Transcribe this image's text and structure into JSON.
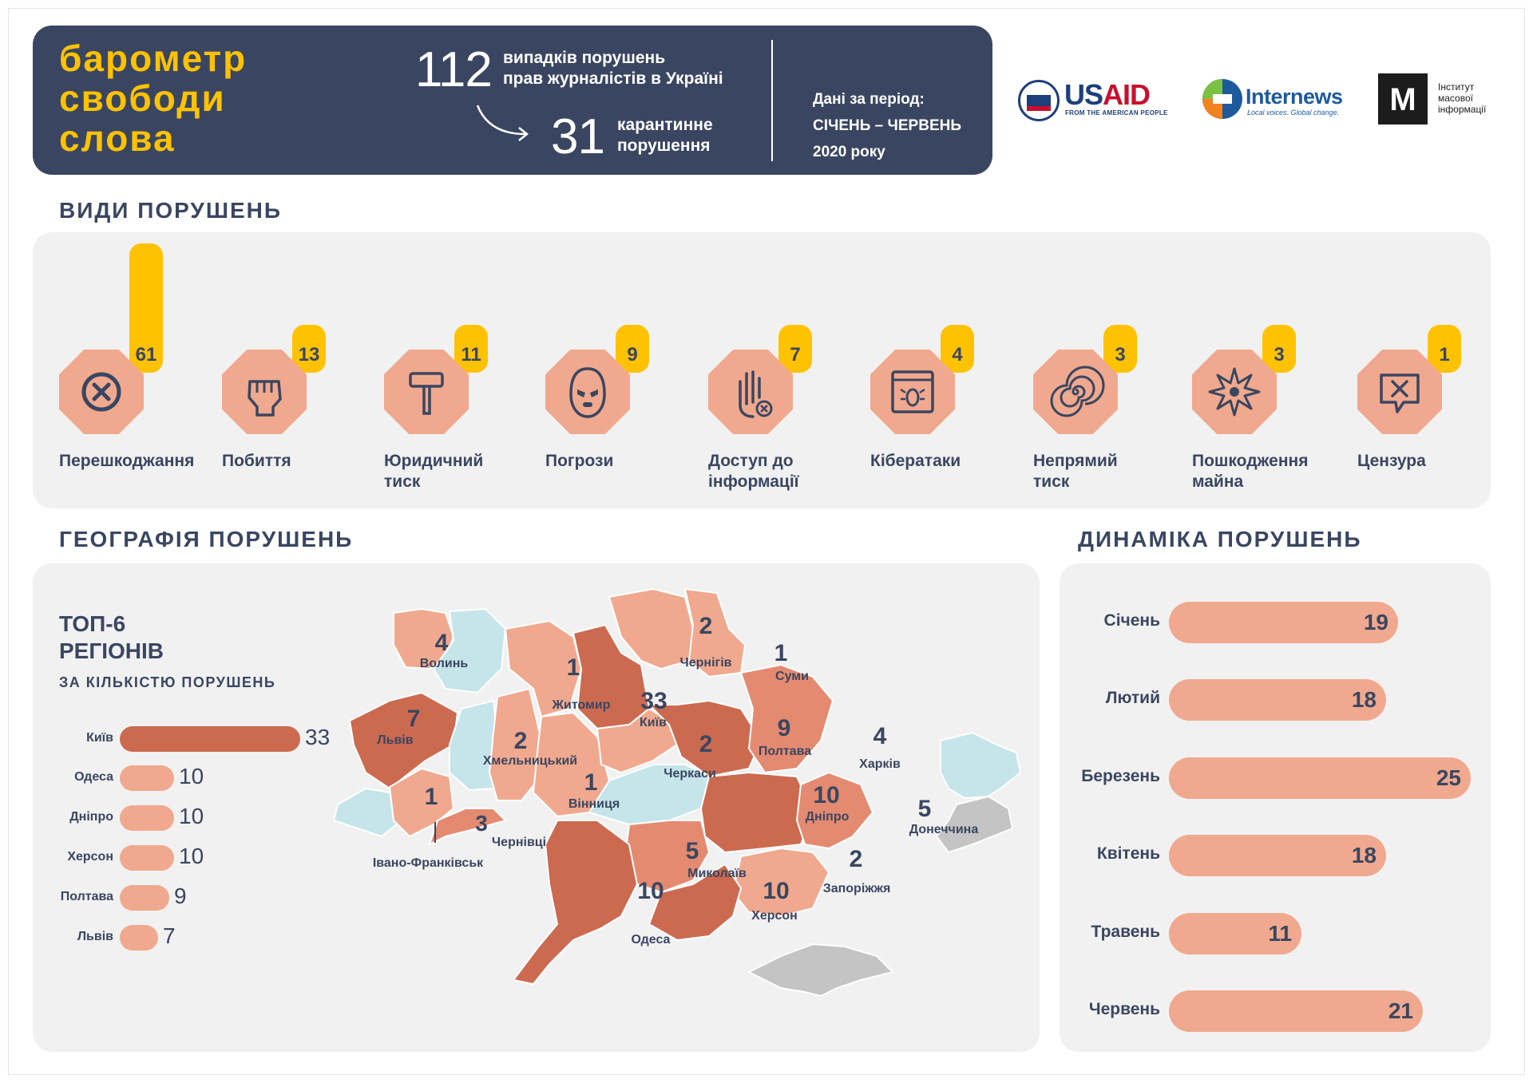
{
  "header": {
    "title_lines": [
      "барометр",
      "свободи",
      "слова"
    ],
    "total_number": "112",
    "total_text_line1": "випадків порушень",
    "total_text_line2": "прав журналістів в Україні",
    "quarantine_number": "31",
    "quarantine_text_line1": "карантинне",
    "quarantine_text_line2": "порушення",
    "period_line1": "Дані за період:",
    "period_line2": "СІЧЕНЬ – ЧЕРВЕНЬ",
    "period_line3": "2020 року"
  },
  "logos": {
    "usaid_part1": "US",
    "usaid_part2": "AID",
    "usaid_sub": "FROM THE AMERICAN PEOPLE",
    "internews_word": "Internews",
    "internews_sub": "Local voices. Global change.",
    "imi_mark": "М",
    "imi_text": "Інститут\nмасової\nінформації"
  },
  "colors": {
    "navy": "#3a4661",
    "yellow": "#ffc200",
    "salmon": "#f0a98e",
    "salmon_mid": "#e48a71",
    "brick": "#cc6a50",
    "blue_light": "#c5e5ea",
    "gray_region": "#c4c4c4",
    "panel": "#f1f1f1"
  },
  "types_section": {
    "title": "ВИДИ ПОРУШЕНЬ",
    "items": [
      {
        "label": "Перешкоджання",
        "value": 61,
        "icon": "cross-circle-icon"
      },
      {
        "label": "Побиття",
        "value": 13,
        "icon": "fist-icon"
      },
      {
        "label": "Юридичний\nтиск",
        "value": 11,
        "icon": "gavel-icon"
      },
      {
        "label": "Погрози",
        "value": 9,
        "icon": "balaclava-icon"
      },
      {
        "label": "Доступ до\nінформації",
        "value": 7,
        "icon": "stop-hand-icon"
      },
      {
        "label": "Кібератаки",
        "value": 4,
        "icon": "bug-window-icon"
      },
      {
        "label": "Непрямий\nтиск",
        "value": 3,
        "icon": "spiral-icon"
      },
      {
        "label": "Пошкодження\nмайна",
        "value": 3,
        "icon": "explosion-icon"
      },
      {
        "label": "Цензура",
        "value": 1,
        "icon": "censored-message-icon"
      }
    ]
  },
  "geo_section": {
    "title": "ГЕОГРАФІЯ ПОРУШЕНЬ",
    "top6_title": "ТОП-6\nРЕГІОНІВ",
    "top6_sub": "ЗА КІЛЬКІСТЮ ПОРУШЕНЬ",
    "map_regions": [
      {
        "name": "Волинь",
        "value": "4"
      },
      {
        "name": "Львів",
        "value": "7"
      },
      {
        "name": "Івано-Франківськ",
        "value": "1"
      },
      {
        "name": "Чернівці",
        "value": "3"
      },
      {
        "name": "Хмельницький",
        "value": "2"
      },
      {
        "name": "Житомир",
        "value": "1"
      },
      {
        "name": "Вінниця",
        "value": "1"
      },
      {
        "name": "Київ",
        "value": "33"
      },
      {
        "name": "Чернігів",
        "value": "2"
      },
      {
        "name": "Суми",
        "value": "1"
      },
      {
        "name": "Черкаси",
        "value": "2"
      },
      {
        "name": "Полтава",
        "value": "9"
      },
      {
        "name": "Харків",
        "value": "4"
      },
      {
        "name": "Дніпро",
        "value": "10"
      },
      {
        "name": "Донеччина",
        "value": "5"
      },
      {
        "name": "Запоріжжя",
        "value": "2"
      },
      {
        "name": "Миколаїв",
        "value": "5"
      },
      {
        "name": "Херсон",
        "value": "10"
      },
      {
        "name": "Одеса",
        "value": "10"
      }
    ]
  },
  "dynamics_section": {
    "title": "ДИНАМІКА ПОРУШЕНЬ"
  },
  "chart_data": [
    {
      "type": "bar",
      "title": "ВИДИ ПОРУШЕНЬ",
      "categories": [
        "Перешкоджання",
        "Побиття",
        "Юридичний тиск",
        "Погрози",
        "Доступ до інформації",
        "Кібератаки",
        "Непрямий тиск",
        "Пошкодження майна",
        "Цензура"
      ],
      "values": [
        61,
        13,
        11,
        9,
        7,
        4,
        3,
        3,
        1
      ]
    },
    {
      "type": "bar",
      "orientation": "horizontal",
      "title": "ТОП-6 РЕГІОНІВ",
      "subtitle": "ЗА КІЛЬКІСТЮ ПОРУШЕНЬ",
      "categories": [
        "Київ",
        "Одеса",
        "Дніпро",
        "Херсон",
        "Полтава",
        "Львів"
      ],
      "values": [
        33,
        10,
        10,
        10,
        9,
        7
      ]
    },
    {
      "type": "bar",
      "orientation": "horizontal",
      "title": "ДИНАМІКА ПОРУШЕНЬ",
      "categories": [
        "Січень",
        "Лютий",
        "Березень",
        "Квітень",
        "Травень",
        "Червень"
      ],
      "values": [
        19,
        18,
        25,
        18,
        11,
        21
      ]
    }
  ]
}
